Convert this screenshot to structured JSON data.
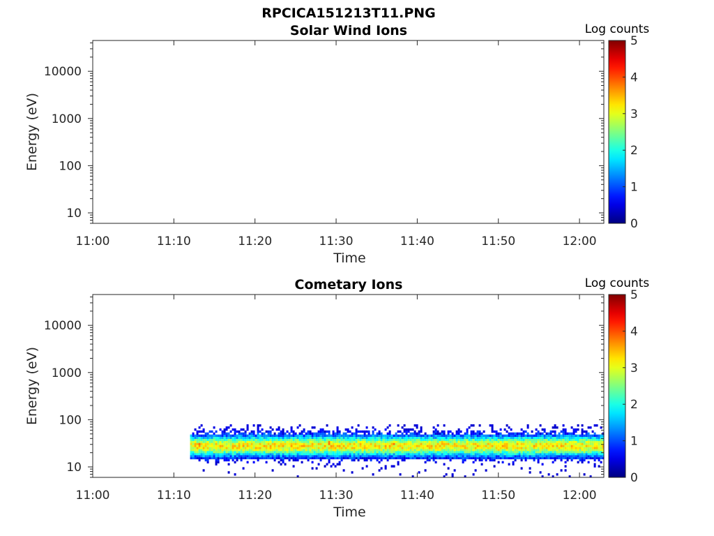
{
  "figure_title": "RPCICA151213T11.PNG",
  "chart_data": [
    {
      "type": "heatmap",
      "title": "Solar Wind Ions",
      "xlabel": "Time",
      "ylabel": "Energy (eV)",
      "x_ticks": [
        "11:00",
        "11:10",
        "11:20",
        "11:30",
        "11:40",
        "11:50",
        "12:00"
      ],
      "xlim": [
        "11:00",
        "12:03"
      ],
      "y_scale": "log",
      "y_ticks": [
        10,
        100,
        1000,
        10000
      ],
      "y_tick_labels": [
        "10",
        "100",
        "1000",
        "10000"
      ],
      "ylim": [
        6,
        45000
      ],
      "colorbar": {
        "label": "Log counts",
        "min": 0,
        "max": 5,
        "ticks": [
          "0",
          "1",
          "2",
          "3",
          "4",
          "5"
        ],
        "colormap": "jet"
      },
      "data_description": "",
      "data": []
    },
    {
      "type": "heatmap",
      "title": "Cometary Ions",
      "xlabel": "Time",
      "ylabel": "Energy (eV)",
      "x_ticks": [
        "11:00",
        "11:10",
        "11:20",
        "11:30",
        "11:40",
        "11:50",
        "12:00"
      ],
      "xlim": [
        "11:00",
        "12:03"
      ],
      "y_scale": "log",
      "y_ticks": [
        10,
        100,
        1000,
        10000
      ],
      "y_tick_labels": [
        "10",
        "100",
        "1000",
        "10000"
      ],
      "ylim": [
        6,
        45000
      ],
      "colorbar": {
        "label": "Log counts",
        "min": 0,
        "max": 5,
        "ticks": [
          "0",
          "1",
          "2",
          "3",
          "4",
          "5"
        ],
        "colormap": "jet"
      },
      "data_start": "11:12",
      "data_end": "12:03",
      "energy_range_ev": [
        6,
        80
      ],
      "peak_band": {
        "energy_ev": [
          20,
          40
        ],
        "log_counts": 3.2
      },
      "hot_spots": [
        {
          "time": "11:13",
          "energy_ev": 30,
          "log_counts": 3.6
        },
        {
          "time": "11:16",
          "energy_ev": 30,
          "log_counts": 3.5
        },
        {
          "time": "11:23",
          "energy_ev": 28,
          "log_counts": 3.7
        },
        {
          "time": "11:29",
          "energy_ev": 32,
          "log_counts": 3.6
        },
        {
          "time": "11:37",
          "energy_ev": 32,
          "log_counts": 3.6
        },
        {
          "time": "11:39",
          "energy_ev": 32,
          "log_counts": 3.6
        },
        {
          "time": "11:43",
          "energy_ev": 32,
          "log_counts": 3.4
        },
        {
          "time": "11:50",
          "energy_ev": 25,
          "log_counts": 3.3
        }
      ]
    }
  ]
}
